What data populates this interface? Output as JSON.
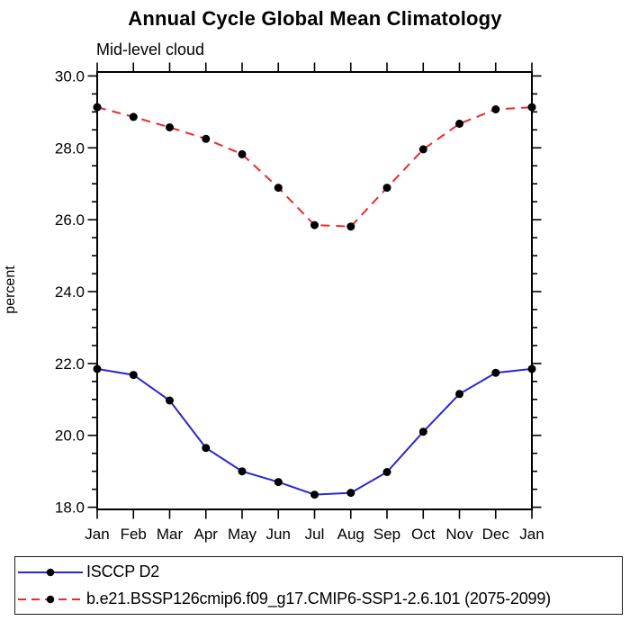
{
  "chart_data": {
    "type": "line",
    "title": "Annual Cycle Global Mean Climatology",
    "subtitle": "Mid-level cloud",
    "ylabel": "percent",
    "xlabel": "",
    "categories": [
      "Jan",
      "Feb",
      "Mar",
      "Apr",
      "May",
      "Jun",
      "Jul",
      "Aug",
      "Sep",
      "Oct",
      "Nov",
      "Dec",
      "Jan"
    ],
    "ylim": [
      17.94,
      30.11
    ],
    "yticks": [
      18,
      20,
      22,
      24,
      26,
      28,
      30
    ],
    "ytick_labels": [
      "18.0",
      "20.0",
      "22.0",
      "24.0",
      "26.0",
      "28.0",
      "30.0"
    ],
    "ytick_minor_step": 0.5,
    "grid": false,
    "legend_position": "bottom-left",
    "marker": {
      "shape": "circle",
      "color": "#000000",
      "radius": 4.5
    },
    "series": [
      {
        "name": "ISCCP D2",
        "color": "#2828d2",
        "line_style": "solid",
        "values": [
          21.85,
          21.68,
          20.97,
          19.65,
          19.0,
          18.7,
          18.35,
          18.4,
          18.98,
          20.1,
          21.15,
          21.74,
          21.85
        ]
      },
      {
        "name": "b.e21.BSSP126cmip6.f09_g17.CMIP6-SSP1-2.6.101 (2075-2099)",
        "color": "#f02828",
        "line_style": "dashed",
        "values": [
          29.13,
          28.86,
          28.57,
          28.25,
          27.82,
          26.89,
          25.85,
          25.81,
          26.89,
          27.96,
          28.67,
          29.07,
          29.13
        ]
      }
    ]
  }
}
